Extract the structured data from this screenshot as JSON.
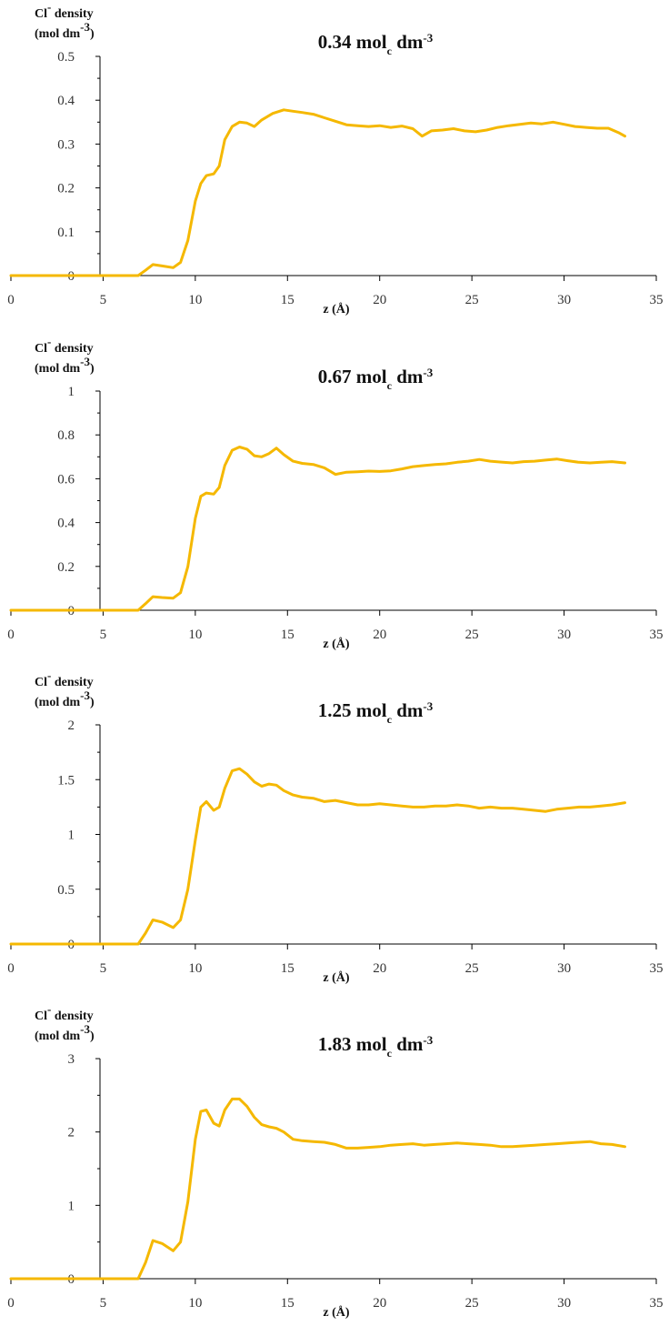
{
  "style": {
    "line_color": "#F5B800",
    "axis_color": "#000000"
  },
  "chart_data": [
    {
      "type": "line",
      "title": {
        "value": "0.34",
        "unit": "mol",
        "subscript": "c",
        "unit_rest": "dm",
        "superscript": "-3"
      },
      "ylabel": {
        "line1_a": "Cl",
        "line1_sup": "-",
        "line1_b": " density",
        "line2_a": "(mol dm",
        "line2_sup": "-3",
        "line2_b": ")"
      },
      "xlabel": "z (Å)",
      "xlim": [
        0,
        35
      ],
      "ylim": [
        0,
        0.5
      ],
      "xticks": [
        "0",
        "5",
        "10",
        "15",
        "20",
        "25",
        "30",
        "35"
      ],
      "yticks": [
        "0",
        "0.1",
        "0.2",
        "0.3",
        "0.4",
        "0.5"
      ],
      "series": [
        {
          "x": [
            0,
            6.9,
            7.3,
            7.7,
            8.2,
            8.8,
            9.2,
            9.6,
            10.0,
            10.3,
            10.6,
            11.0,
            11.3,
            11.6,
            12.0,
            12.4,
            12.8,
            13.2,
            13.6,
            14.2,
            14.8,
            15.3,
            15.8,
            16.4,
            17.0,
            17.6,
            18.2,
            18.8,
            19.4,
            20.0,
            20.6,
            21.2,
            21.8,
            22.3,
            22.8,
            23.4,
            24.0,
            24.6,
            25.2,
            25.8,
            26.4,
            27.0,
            27.6,
            28.2,
            28.8,
            29.4,
            30.0,
            30.6,
            31.2,
            31.8,
            32.4,
            33.0,
            33.3
          ],
          "y": [
            0,
            0.0,
            0.012,
            0.025,
            0.022,
            0.018,
            0.03,
            0.08,
            0.17,
            0.21,
            0.228,
            0.232,
            0.25,
            0.31,
            0.34,
            0.35,
            0.348,
            0.34,
            0.355,
            0.37,
            0.378,
            0.375,
            0.372,
            0.368,
            0.36,
            0.352,
            0.344,
            0.342,
            0.34,
            0.342,
            0.338,
            0.341,
            0.335,
            0.318,
            0.33,
            0.332,
            0.335,
            0.33,
            0.328,
            0.332,
            0.338,
            0.342,
            0.345,
            0.348,
            0.346,
            0.35,
            0.345,
            0.34,
            0.338,
            0.336,
            0.336,
            0.325,
            0.318
          ]
        }
      ]
    },
    {
      "type": "line",
      "title": {
        "value": "0.67",
        "unit": "mol",
        "subscript": "c",
        "unit_rest": "dm",
        "superscript": "-3"
      },
      "ylabel": {
        "line1_a": "Cl",
        "line1_sup": "-",
        "line1_b": " density",
        "line2_a": "(mol dm",
        "line2_sup": "-3",
        "line2_b": ")"
      },
      "xlabel": "z (Å)",
      "xlim": [
        0,
        35
      ],
      "ylim": [
        0,
        1
      ],
      "xticks": [
        "0",
        "5",
        "10",
        "15",
        "20",
        "25",
        "30",
        "35"
      ],
      "yticks": [
        "0",
        "0.2",
        "0.4",
        "0.6",
        "0.8",
        "1"
      ],
      "series": [
        {
          "x": [
            0,
            6.9,
            7.3,
            7.7,
            8.2,
            8.8,
            9.2,
            9.6,
            10.0,
            10.3,
            10.6,
            11.0,
            11.3,
            11.6,
            12.0,
            12.4,
            12.8,
            13.2,
            13.6,
            14.0,
            14.4,
            14.8,
            15.3,
            15.8,
            16.4,
            17.0,
            17.6,
            18.2,
            18.8,
            19.4,
            20.0,
            20.6,
            21.2,
            21.8,
            22.4,
            23.0,
            23.6,
            24.2,
            24.8,
            25.4,
            26.0,
            26.6,
            27.2,
            27.8,
            28.4,
            29.0,
            29.6,
            30.2,
            30.8,
            31.4,
            32.0,
            32.6,
            33.3
          ],
          "y": [
            0,
            0.0,
            0.03,
            0.062,
            0.058,
            0.055,
            0.08,
            0.2,
            0.42,
            0.52,
            0.535,
            0.53,
            0.56,
            0.66,
            0.73,
            0.745,
            0.735,
            0.705,
            0.7,
            0.715,
            0.74,
            0.71,
            0.68,
            0.67,
            0.665,
            0.65,
            0.62,
            0.63,
            0.632,
            0.635,
            0.633,
            0.636,
            0.645,
            0.655,
            0.66,
            0.665,
            0.668,
            0.675,
            0.68,
            0.688,
            0.68,
            0.676,
            0.672,
            0.678,
            0.68,
            0.685,
            0.69,
            0.682,
            0.675,
            0.672,
            0.675,
            0.678,
            0.672
          ]
        }
      ]
    },
    {
      "type": "line",
      "title": {
        "value": "1.25",
        "unit": "mol",
        "subscript": "c",
        "unit_rest": "dm",
        "superscript": "-3"
      },
      "ylabel": {
        "line1_a": "Cl",
        "line1_sup": "-",
        "line1_b": " density",
        "line2_a": "(mol dm",
        "line2_sup": "-3",
        "line2_b": ")"
      },
      "xlabel": "z (Å)",
      "xlim": [
        0,
        35
      ],
      "ylim": [
        0,
        2
      ],
      "xticks": [
        "0",
        "5",
        "10",
        "15",
        "20",
        "25",
        "30",
        "35"
      ],
      "yticks": [
        "0",
        "0.5",
        "1",
        "1.5",
        "2"
      ],
      "series": [
        {
          "x": [
            0,
            6.9,
            7.3,
            7.7,
            8.2,
            8.8,
            9.2,
            9.6,
            10.0,
            10.3,
            10.6,
            11.0,
            11.3,
            11.6,
            12.0,
            12.4,
            12.8,
            13.2,
            13.6,
            14.0,
            14.4,
            14.8,
            15.3,
            15.8,
            16.4,
            17.0,
            17.6,
            18.2,
            18.8,
            19.4,
            20.0,
            20.6,
            21.2,
            21.8,
            22.4,
            23.0,
            23.6,
            24.2,
            24.8,
            25.4,
            26.0,
            26.6,
            27.2,
            27.8,
            28.4,
            29.0,
            29.6,
            30.2,
            30.8,
            31.4,
            32.0,
            32.6,
            33.3
          ],
          "y": [
            0,
            0.0,
            0.1,
            0.22,
            0.2,
            0.15,
            0.22,
            0.5,
            0.95,
            1.25,
            1.3,
            1.22,
            1.25,
            1.42,
            1.58,
            1.6,
            1.55,
            1.48,
            1.44,
            1.46,
            1.45,
            1.4,
            1.36,
            1.34,
            1.33,
            1.3,
            1.31,
            1.29,
            1.27,
            1.27,
            1.28,
            1.27,
            1.26,
            1.25,
            1.25,
            1.26,
            1.26,
            1.27,
            1.26,
            1.24,
            1.25,
            1.24,
            1.24,
            1.23,
            1.22,
            1.21,
            1.23,
            1.24,
            1.25,
            1.25,
            1.26,
            1.27,
            1.29
          ]
        }
      ]
    },
    {
      "type": "line",
      "title": {
        "value": "1.83",
        "unit": "mol",
        "subscript": "c",
        "unit_rest": "dm",
        "superscript": "-3"
      },
      "ylabel": {
        "line1_a": "Cl",
        "line1_sup": "-",
        "line1_b": " density",
        "line2_a": "(mol dm",
        "line2_sup": "-3",
        "line2_b": ")"
      },
      "xlabel": "z (Å)",
      "xlim": [
        0,
        35
      ],
      "ylim": [
        0,
        3
      ],
      "xticks": [
        "0",
        "5",
        "10",
        "15",
        "20",
        "25",
        "30",
        "35"
      ],
      "yticks": [
        "0",
        "1",
        "2",
        "3"
      ],
      "series": [
        {
          "x": [
            0,
            6.9,
            7.3,
            7.7,
            8.2,
            8.8,
            9.2,
            9.6,
            10.0,
            10.3,
            10.6,
            11.0,
            11.3,
            11.6,
            12.0,
            12.4,
            12.8,
            13.2,
            13.6,
            14.0,
            14.4,
            14.8,
            15.3,
            15.8,
            16.4,
            17.0,
            17.6,
            18.2,
            18.8,
            19.4,
            20.0,
            20.6,
            21.2,
            21.8,
            22.4,
            23.0,
            23.6,
            24.2,
            24.8,
            25.4,
            26.0,
            26.6,
            27.2,
            27.8,
            28.4,
            29.0,
            29.6,
            30.2,
            30.8,
            31.4,
            32.0,
            32.6,
            33.3
          ],
          "y": [
            0,
            0.0,
            0.22,
            0.52,
            0.48,
            0.38,
            0.5,
            1.05,
            1.9,
            2.28,
            2.3,
            2.12,
            2.08,
            2.3,
            2.45,
            2.45,
            2.35,
            2.2,
            2.1,
            2.07,
            2.05,
            2.0,
            1.9,
            1.88,
            1.87,
            1.86,
            1.83,
            1.78,
            1.78,
            1.79,
            1.8,
            1.82,
            1.83,
            1.84,
            1.82,
            1.83,
            1.84,
            1.85,
            1.84,
            1.83,
            1.82,
            1.8,
            1.8,
            1.81,
            1.82,
            1.83,
            1.84,
            1.85,
            1.86,
            1.87,
            1.84,
            1.83,
            1.8
          ]
        }
      ]
    }
  ]
}
